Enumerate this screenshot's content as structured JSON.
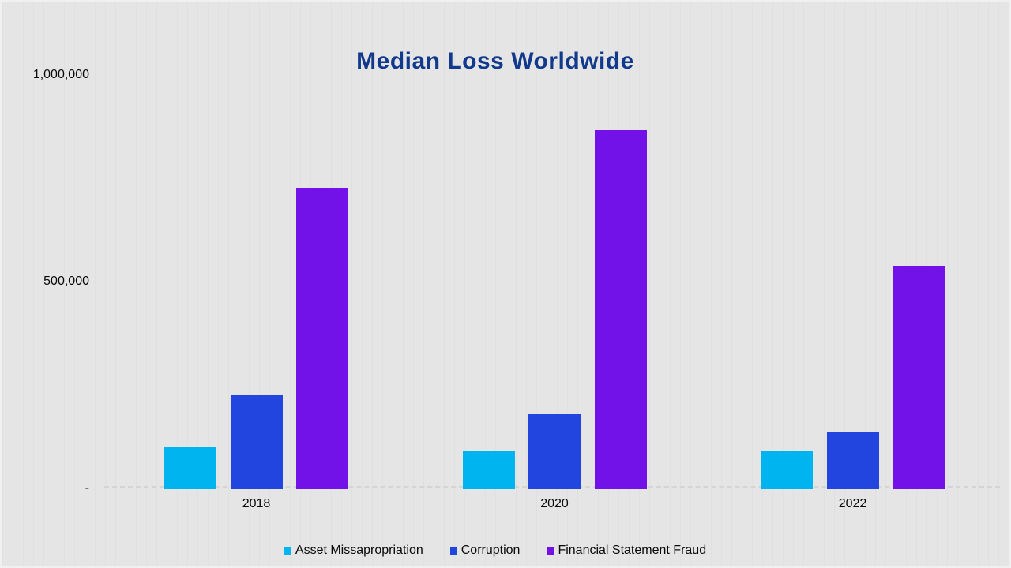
{
  "title": {
    "text": "Median Loss Worldwide",
    "color": "#123a8c"
  },
  "y_axis": {
    "tick_labels": [
      "1,000,000",
      "500,000",
      "-"
    ]
  },
  "chart_data": {
    "type": "bar",
    "title": "Median Loss Worldwide",
    "categories": [
      "2018",
      "2020",
      "2022"
    ],
    "series": [
      {
        "name": "Asset Missapropriation",
        "color": "#00b4f0",
        "values": [
          114000,
          100000,
          100000
        ]
      },
      {
        "name": "Corruption",
        "color": "#2145de",
        "values": [
          250000,
          200000,
          150000
        ]
      },
      {
        "name": "Financial Statement Fraud",
        "color": "#7212e9",
        "values": [
          800000,
          954000,
          593000
        ]
      }
    ],
    "xlabel": "",
    "ylabel": "",
    "ylim": [
      0,
      1000000
    ],
    "y_tick_labels_shown": [
      "-",
      "500,000",
      "1,000,000"
    ],
    "grid": false,
    "legend_position": "bottom-center",
    "background_color": "#e5e5e6"
  }
}
